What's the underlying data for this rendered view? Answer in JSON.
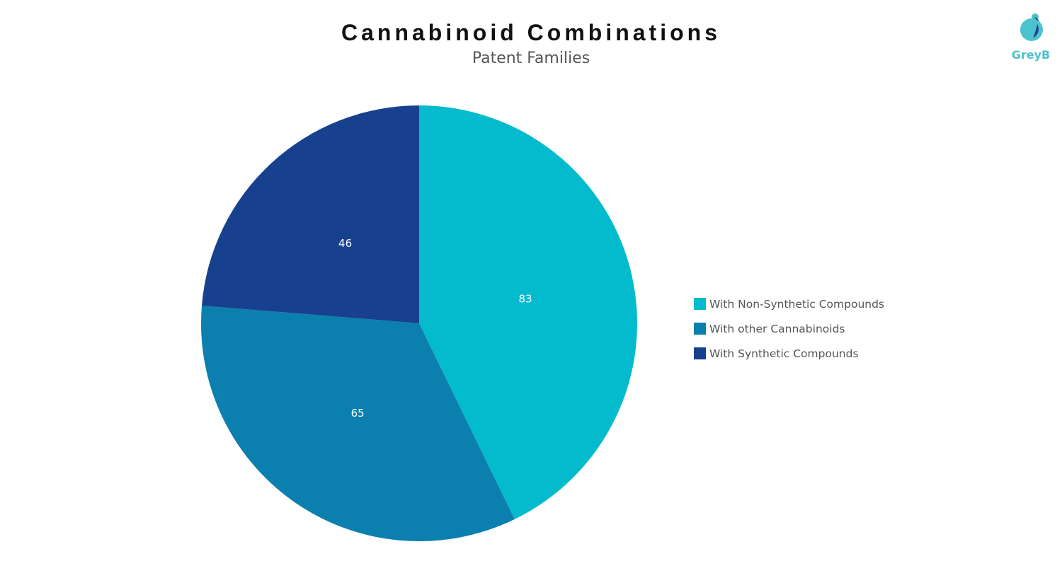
{
  "chart_data": {
    "type": "pie",
    "title": "Cannabinoid Combinations",
    "subtitle": "Patent Families",
    "categories": [
      "With Non-Synthetic Compounds",
      "With other Cannabinoids",
      "With Synthetic Compounds"
    ],
    "values": [
      83,
      65,
      46
    ],
    "colors": [
      "#04BBCE",
      "#0B80AE",
      "#17418F"
    ],
    "data_labels": [
      "83",
      "65",
      "46"
    ],
    "legend_position": "right"
  },
  "logo": {
    "text": "GreyB",
    "colors": [
      "#4BC3CC",
      "#26409A"
    ]
  }
}
